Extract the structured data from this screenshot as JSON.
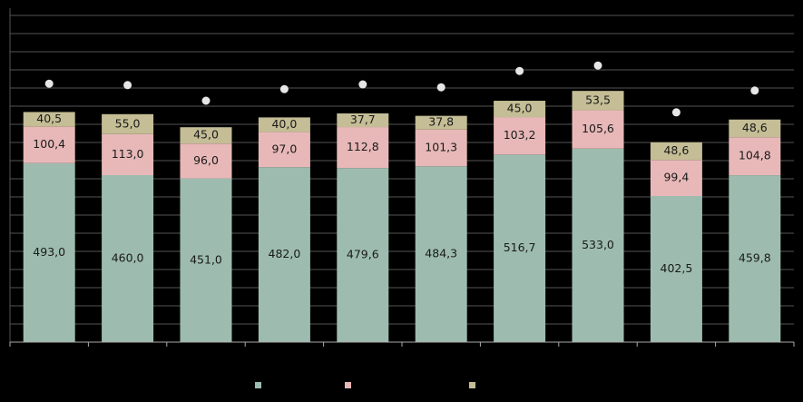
{
  "chart_data": {
    "type": "bar",
    "stacked": true,
    "categories": [
      "",
      "",
      "",
      "",
      "",
      "",
      "",
      "",
      "",
      ""
    ],
    "series": [
      {
        "values": [
          493.0,
          460.0,
          451.0,
          482.0,
          479.6,
          484.3,
          516.7,
          533.0,
          402.5,
          459.8
        ],
        "labels": [
          "493,0",
          "460,0",
          "451,0",
          "482,0",
          "479,6",
          "484,3",
          "516,7",
          "533,0",
          "402,5",
          "459,8"
        ],
        "color": "#9dbcaf"
      },
      {
        "values": [
          100.4,
          113.0,
          96.0,
          97.0,
          112.8,
          101.3,
          103.2,
          105.6,
          99.4,
          104.8
        ],
        "labels": [
          "100,4",
          "113,0",
          "96,0",
          "97,0",
          "112,8",
          "101,3",
          "103,2",
          "105,6",
          "99,4",
          "104,8"
        ],
        "color": "#e8b8b8"
      },
      {
        "values": [
          40.5,
          55.0,
          45.0,
          40.0,
          37.7,
          37.8,
          45.0,
          53.5,
          48.6,
          48.6
        ],
        "labels": [
          "40,5",
          "55,0",
          "45,0",
          "40,0",
          "37,7",
          "37,8",
          "45,0",
          "53,5",
          "48,6",
          "48,6"
        ],
        "color": "#c4bd95"
      }
    ],
    "markers": {
      "values": [
        712,
        708,
        665,
        697,
        710,
        702,
        747,
        762,
        633,
        693
      ],
      "color": "#e6e6e6"
    },
    "ylim": [
      0,
      920
    ],
    "grid_step": 50,
    "grid": true,
    "legend_position": "bottom",
    "background": "#000000",
    "grid_color": "#555555"
  }
}
